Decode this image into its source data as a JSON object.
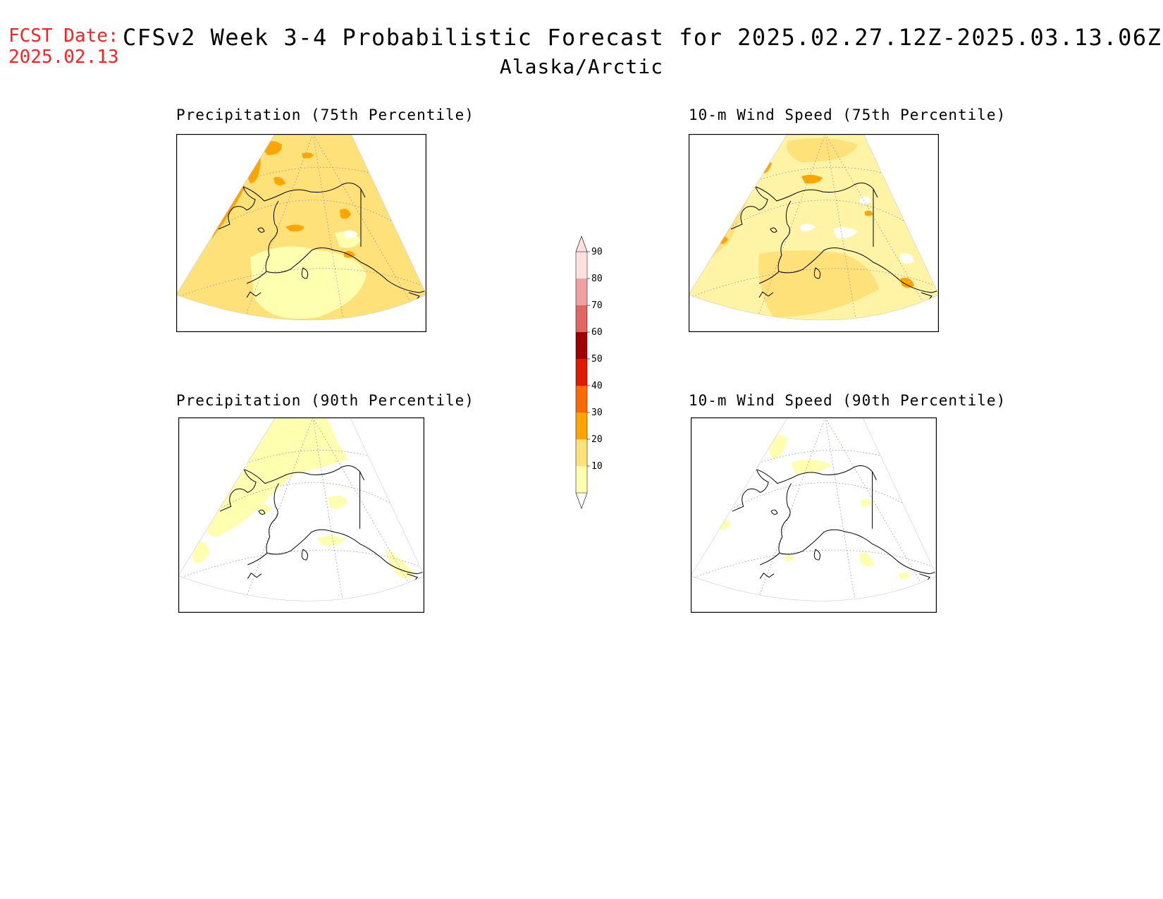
{
  "header": {
    "fcst_label": "FCST Date:",
    "fcst_date": "2025.02.13",
    "title": "CFSv2 Week 3-4 Probabilistic Forecast for 2025.02.27.12Z-2025.03.13.06Z",
    "subtitle": "Alaska/Arctic"
  },
  "panels": [
    {
      "title": "Precipitation (75th Percentile)",
      "base_fill": "#ffe17a",
      "level": "high"
    },
    {
      "title": "10-m Wind Speed (75th Percentile)",
      "base_fill": "#fff3a5",
      "level": "mid"
    },
    {
      "title": "Precipitation (90th Percentile)",
      "base_fill": "#ffffff",
      "level": "low"
    },
    {
      "title": "10-m Wind Speed (90th Percentile)",
      "base_fill": "#ffffff",
      "level": "verylow"
    }
  ],
  "colorbar": {
    "levels": [
      "10",
      "20",
      "30",
      "40",
      "50",
      "60",
      "70",
      "80",
      "90"
    ],
    "colors": [
      "#ffffb0",
      "#ffe17a",
      "#ffa500",
      "#ff6a00",
      "#e01a00",
      "#a00000",
      "#e06666",
      "#f0a0a0",
      "#ffe0e0"
    ]
  }
}
